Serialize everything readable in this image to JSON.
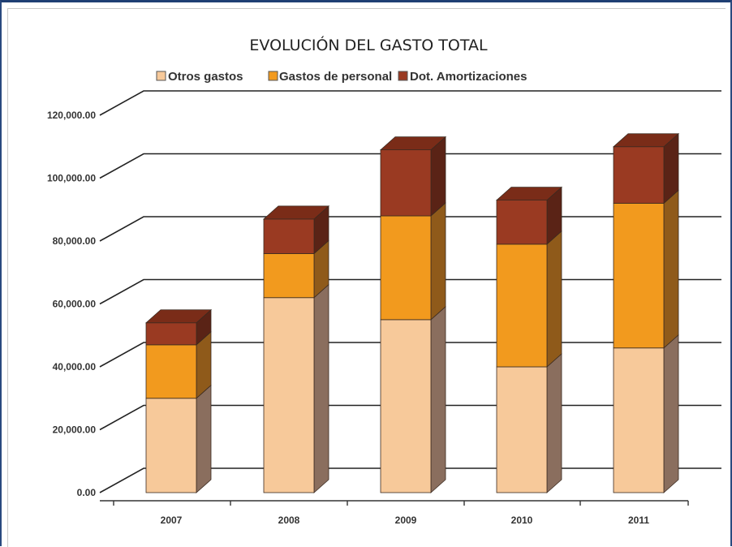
{
  "chart_data": {
    "type": "bar",
    "stacked": true,
    "three_d": true,
    "title": "EVOLUCIÓN DEL GASTO TOTAL",
    "categories": [
      "2007",
      "2008",
      "2009",
      "2010",
      "2011"
    ],
    "series": [
      {
        "name": "Otros gastos",
        "color": "#f7c99a",
        "side": "#8a6e5e",
        "values": [
          30000,
          62000,
          55000,
          40000,
          46000
        ]
      },
      {
        "name": "Gastos de personal",
        "color": "#f29a1e",
        "side": "#8f5a1a",
        "values": [
          17000,
          14000,
          33000,
          39000,
          46000
        ]
      },
      {
        "name": "Dot. Amortizaciones",
        "color": "#9a3a22",
        "side": "#5a2316",
        "values": [
          7000,
          11000,
          21000,
          14000,
          18000
        ]
      }
    ],
    "y_ticks": [
      "0.00",
      "20,000.00",
      "40,000.00",
      "60,000.00",
      "80,000.00",
      "100,000.00",
      "120,000.00"
    ],
    "ylim": [
      0,
      120000
    ],
    "grid": true,
    "legend_position": "top",
    "colors": {
      "gridline": "#222222",
      "background": "#ffffff"
    }
  }
}
